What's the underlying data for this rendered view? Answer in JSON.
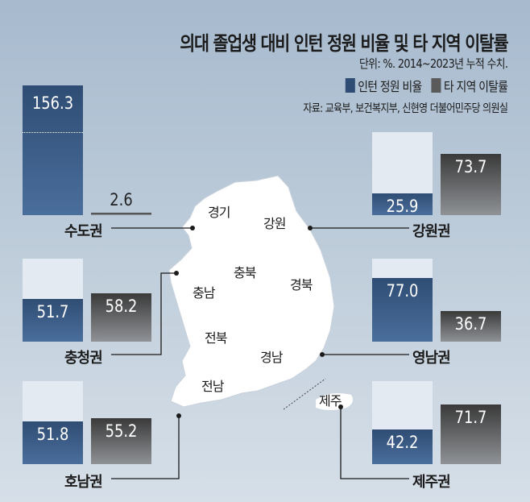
{
  "title": "의대 졸업생 대비 인턴 정원 비율 및 타 지역 이탈률",
  "unit": "단위: %. 2014~2023년 누적 수치.",
  "source": "자료: 교육부, 보건복지부, 신현영 더불어민주당 의원실",
  "colors": {
    "intern": "#2f4d74",
    "outflow": "#5a5a5a",
    "reference_100": "#e4eaf1"
  },
  "map_labels": [
    "경기",
    "강원",
    "충북",
    "충남",
    "경북",
    "전북",
    "경남",
    "전남",
    "제주"
  ],
  "chart_data": {
    "type": "bar",
    "title": "의대 졸업생 대비 인턴 정원 비율 및 타 지역 이탈률",
    "legend": [
      "인턴 정원 비율",
      "타 지역 이탈률"
    ],
    "legend_placement": "top-right",
    "reference_line": 100,
    "categories": [
      "수도권",
      "강원권",
      "충청권",
      "영남권",
      "호남권",
      "제주권"
    ],
    "series": [
      {
        "name": "인턴 정원 비율",
        "values": [
          156.3,
          25.9,
          51.7,
          77.0,
          51.8,
          42.2
        ]
      },
      {
        "name": "타 지역 이탈률",
        "values": [
          2.6,
          73.7,
          58.2,
          36.7,
          55.2,
          71.7
        ]
      }
    ],
    "value_labels": {
      "인턴 정원 비율": [
        "156.3",
        "25.9",
        "51.7",
        "77.0",
        "51.8",
        "42.2"
      ],
      "타 지역 이탈률": [
        "2.6",
        "73.7",
        "58.2",
        "36.7",
        "55.2",
        "71.7"
      ]
    }
  }
}
